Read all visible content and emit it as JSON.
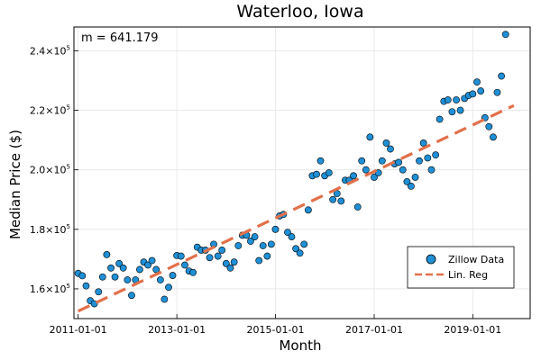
{
  "chart_data": {
    "type": "scatter",
    "title": "Waterloo, Iowa",
    "xlabel": "Month",
    "ylabel": "Median Price ($)",
    "annotation": "m = 641.179",
    "grid": true,
    "legend_position": "lower-right",
    "colors": {
      "points": "#1f8fd6",
      "regression": "#e2704a"
    },
    "x_ticks": [
      "2011-01-01",
      "2013-01-01",
      "2015-01-01",
      "2017-01-01",
      "2019-01-01"
    ],
    "y_ticks": [
      {
        "value": 160000,
        "mantissa": "1.6×10",
        "exp": "5"
      },
      {
        "value": 180000,
        "mantissa": "1.8×10",
        "exp": "5"
      },
      {
        "value": 200000,
        "mantissa": "2.0×10",
        "exp": "5"
      },
      {
        "value": 220000,
        "mantissa": "2.2×10",
        "exp": "5"
      },
      {
        "value": 240000,
        "mantissa": "2.4×10",
        "exp": "5"
      }
    ],
    "x_range": [
      "2010-12-01",
      "2020-03-01"
    ],
    "ylim": [
      150000,
      248000
    ],
    "series": [
      {
        "name": "Zillow Data",
        "kind": "scatter",
        "x_start": "2011-01-01",
        "x_step": "1 month",
        "values": [
          165200,
          164400,
          161000,
          156000,
          155000,
          159000,
          164000,
          171500,
          167000,
          164000,
          168500,
          167000,
          163000,
          157800,
          163000,
          166500,
          169000,
          168000,
          169500,
          166500,
          163000,
          156500,
          160500,
          164500,
          171200,
          171000,
          168000,
          166000,
          165500,
          174000,
          173000,
          173000,
          170500,
          175000,
          171000,
          173000,
          168500,
          167000,
          169000,
          174500,
          178000,
          178000,
          176000,
          177500,
          169500,
          174500,
          171000,
          175000,
          180000,
          184500,
          185000,
          179000,
          177500,
          173500,
          172000,
          175000,
          186500,
          198000,
          198500,
          203000,
          198000,
          199000,
          190000,
          192000,
          189500,
          196500,
          196500,
          198000,
          187500,
          203000,
          200000,
          211000,
          197500,
          199000,
          203000,
          209000,
          207000,
          202000,
          202500,
          200000,
          196000,
          194500,
          197500,
          203000,
          209000,
          204000,
          200000,
          205000,
          217000,
          223000,
          223500,
          219500,
          223500,
          220000,
          224000,
          225000,
          225500,
          229500,
          226500,
          217500,
          214500,
          211000,
          226000,
          231500,
          245500
        ]
      },
      {
        "name": "Lin. Reg",
        "kind": "line",
        "style": "dashed",
        "x": [
          "2011-01-01",
          "2019-11-01"
        ],
        "y": [
          152500,
          221600
        ]
      }
    ]
  }
}
